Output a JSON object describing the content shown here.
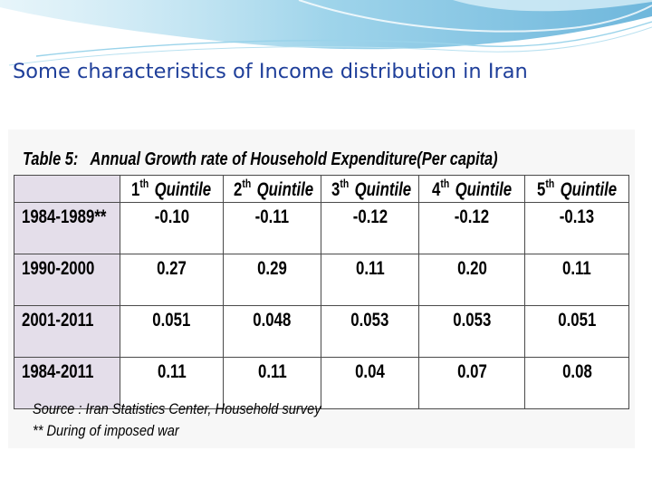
{
  "slide": {
    "title": "Some characteristics  of Income distribution in Iran"
  },
  "table": {
    "label": "Table  5:",
    "caption": "Annual Growth rate of Household Expenditure(Per capita)",
    "columns": [
      {
        "num": "1",
        "sup": "th",
        "word": "Quintile"
      },
      {
        "num": "2",
        "sup": "th",
        "word": "Quintile"
      },
      {
        "num": "3",
        "sup": "th",
        "word": "Quintile"
      },
      {
        "num": "4",
        "sup": "th",
        "word": "Quintile"
      },
      {
        "num": "5",
        "sup": "th",
        "word": "Quintile"
      }
    ],
    "rows": [
      {
        "period": "1984-1989**",
        "values": [
          "-0.10",
          "-0.11",
          "-0.12",
          "-0.12",
          "-0.13"
        ]
      },
      {
        "period": "1990-2000",
        "values": [
          "0.27",
          "0.29",
          "0.11",
          "0.20",
          "0.11"
        ]
      },
      {
        "period": "2001-2011",
        "values": [
          "0.051",
          "0.048",
          "0.053",
          "0.053",
          "0.051"
        ]
      },
      {
        "period": "1984-2011",
        "values": [
          "0.11",
          "0.11",
          "0.04",
          "0.07",
          "0.08"
        ]
      }
    ]
  },
  "footnotes": {
    "source": "Source : Iran Statistics Center, Household survey",
    "war_note": "** During of imposed war"
  },
  "colors": {
    "title": "#1f3f9a",
    "row_header_fill": "#e4deea",
    "swoosh": "#7fc6e4"
  }
}
